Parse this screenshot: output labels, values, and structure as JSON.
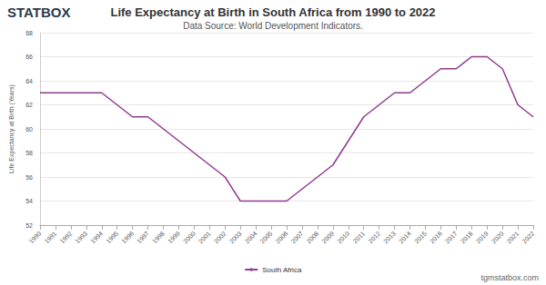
{
  "chart_data": {
    "type": "line",
    "title": "Life Expectancy at Birth in South Africa from 1990 to 2022",
    "subtitle": "Data Source: World Development Indicators.",
    "y_label": "Life Expectancy at Birth (Years)",
    "annotations": [
      "STATBOX",
      "tgmstatbox.com"
    ],
    "categories": [
      "1990",
      "1991",
      "1992",
      "1993",
      "1994",
      "1995",
      "1996",
      "1997",
      "1998",
      "1999",
      "2000",
      "2001",
      "2002",
      "2003",
      "2004",
      "2005",
      "2006",
      "2007",
      "2008",
      "2009",
      "2010",
      "2011",
      "2012",
      "2013",
      "2014",
      "2015",
      "2016",
      "2017",
      "2018",
      "2019",
      "2020",
      "2021",
      "2022"
    ],
    "series": [
      {
        "name": "South Africa",
        "color": "#8e3a8e",
        "values": [
          63,
          63,
          63,
          63,
          63,
          62,
          61,
          61,
          60,
          59,
          58,
          57,
          56,
          54,
          54,
          54,
          54,
          55,
          56,
          57,
          59,
          61,
          62,
          63,
          63,
          64,
          65,
          65,
          66,
          66,
          65,
          62,
          61
        ]
      }
    ],
    "ylim": [
      52,
      68
    ],
    "yticks": [
      52,
      54,
      56,
      58,
      60,
      62,
      64,
      66,
      68
    ],
    "grid": true,
    "legend": "bottom"
  }
}
